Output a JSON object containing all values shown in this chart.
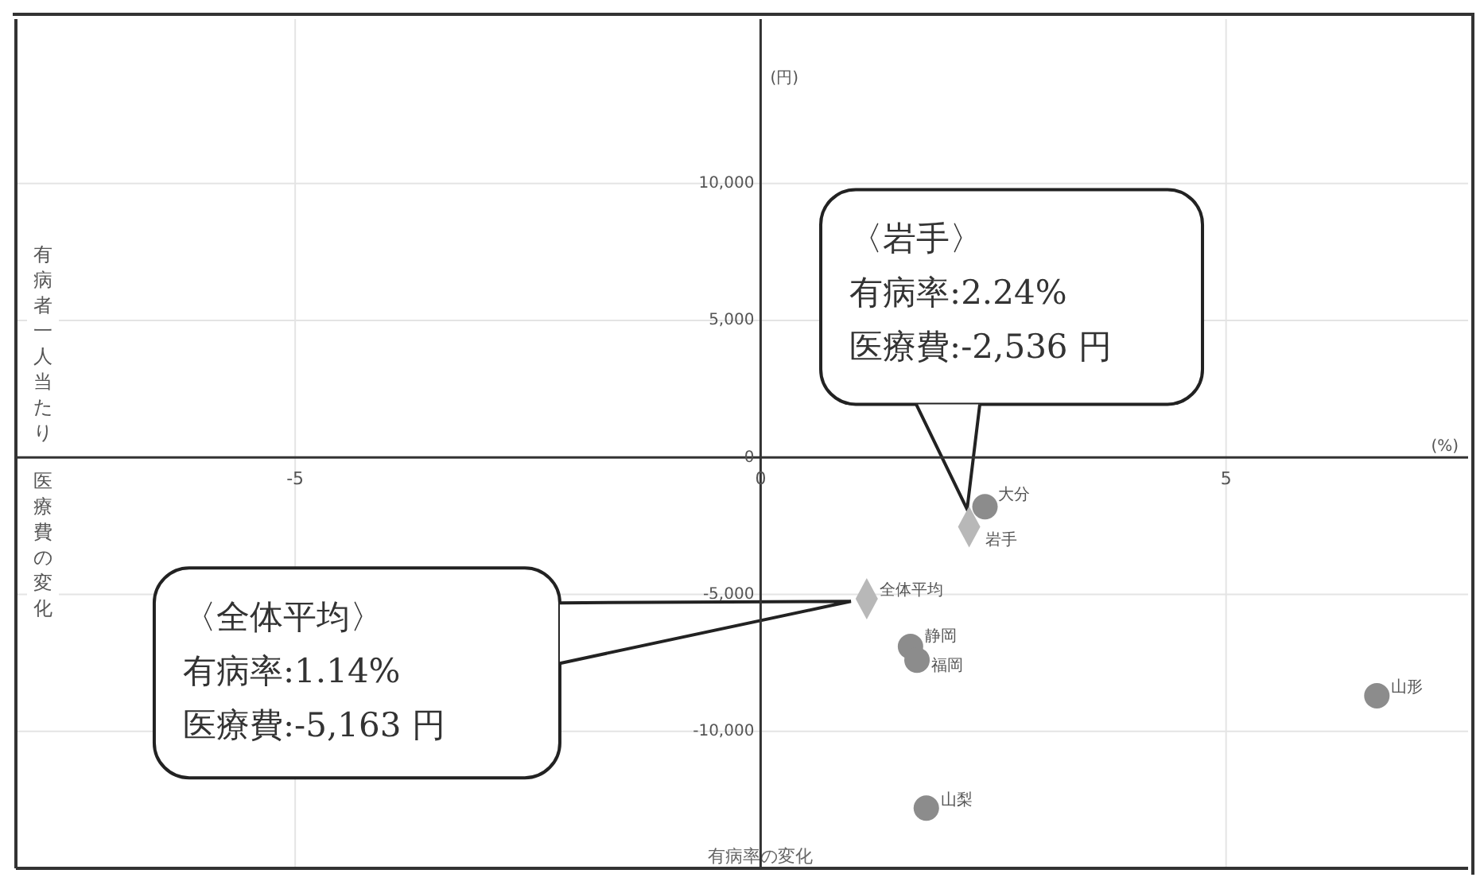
{
  "chart_data": {
    "type": "scatter",
    "xlabel": "有病率の変化",
    "ylabel": "有病者一人当たり医療費の変化",
    "xlim": [
      -8,
      7.6
    ],
    "ylim": [
      -15000,
      16000
    ],
    "xticks": [
      -5,
      0,
      5
    ],
    "yticks": [
      {
        "value": -10000,
        "label": "-10,000"
      },
      {
        "value": -5000,
        "label": "-5,000"
      },
      0,
      {
        "value": 5000,
        "label": "5,000"
      },
      {
        "value": 10000,
        "label": "10,000"
      }
    ],
    "grid": true,
    "series": [
      {
        "marker": "circle",
        "color": "#8c8c8c",
        "x": [
          2.41,
          1.61,
          1.68,
          1.78,
          6.62
        ],
        "values": [
          -1800,
          -6900,
          -7400,
          -12800,
          -8700
        ]
      },
      {
        "marker": "diamond",
        "color": "#b8b8b8",
        "x": [
          2.24,
          1.14
        ],
        "values": [
          -2536,
          -5163
        ]
      }
    ],
    "annotations": [
      "(円)",
      "(%)",
      {
        "text": "大分",
        "x": 2.41,
        "y": -1800
      },
      {
        "text": "岩手",
        "x": 2.24,
        "y": -2536
      },
      {
        "text": "全体平均",
        "x": 1.14,
        "y": -5163
      },
      {
        "text": "静岡",
        "x": 1.61,
        "y": -6900
      },
      {
        "text": "福岡",
        "x": 1.68,
        "y": -7400
      },
      {
        "text": "山梨",
        "x": 1.78,
        "y": -12800
      },
      {
        "text": "山形",
        "x": 6.62,
        "y": -8700
      },
      "〈岩手〉",
      "有病率:2.24%",
      "医療費:-2,536 円",
      "〈全体平均〉",
      "有病率:1.14%",
      "医療費:-5,163 円"
    ]
  }
}
